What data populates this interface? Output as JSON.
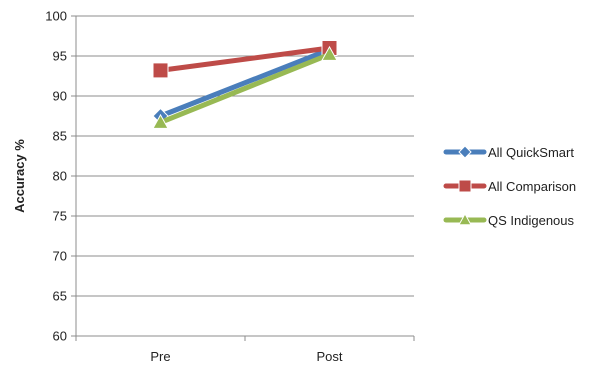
{
  "chart_data": {
    "type": "line",
    "categories": [
      "Pre",
      "Post"
    ],
    "ylabel": "Accuracy %",
    "xlabel": "",
    "title": "",
    "ylim": [
      60,
      100
    ],
    "ytick_step": 5,
    "yticks": [
      "60",
      "65",
      "70",
      "75",
      "80",
      "85",
      "90",
      "95",
      "100"
    ],
    "grid": "horizontal",
    "legend_position": "right",
    "series": [
      {
        "name": "All QuickSmart",
        "values": [
          87.5,
          95.8
        ],
        "color": "#4a7ebb",
        "marker": "diamond"
      },
      {
        "name": "All Comparison",
        "values": [
          93.2,
          96.0
        ],
        "color": "#be4b48",
        "marker": "square"
      },
      {
        "name": "QS Indigenous",
        "values": [
          86.7,
          95.2
        ],
        "color": "#98b954",
        "marker": "triangle"
      }
    ]
  }
}
